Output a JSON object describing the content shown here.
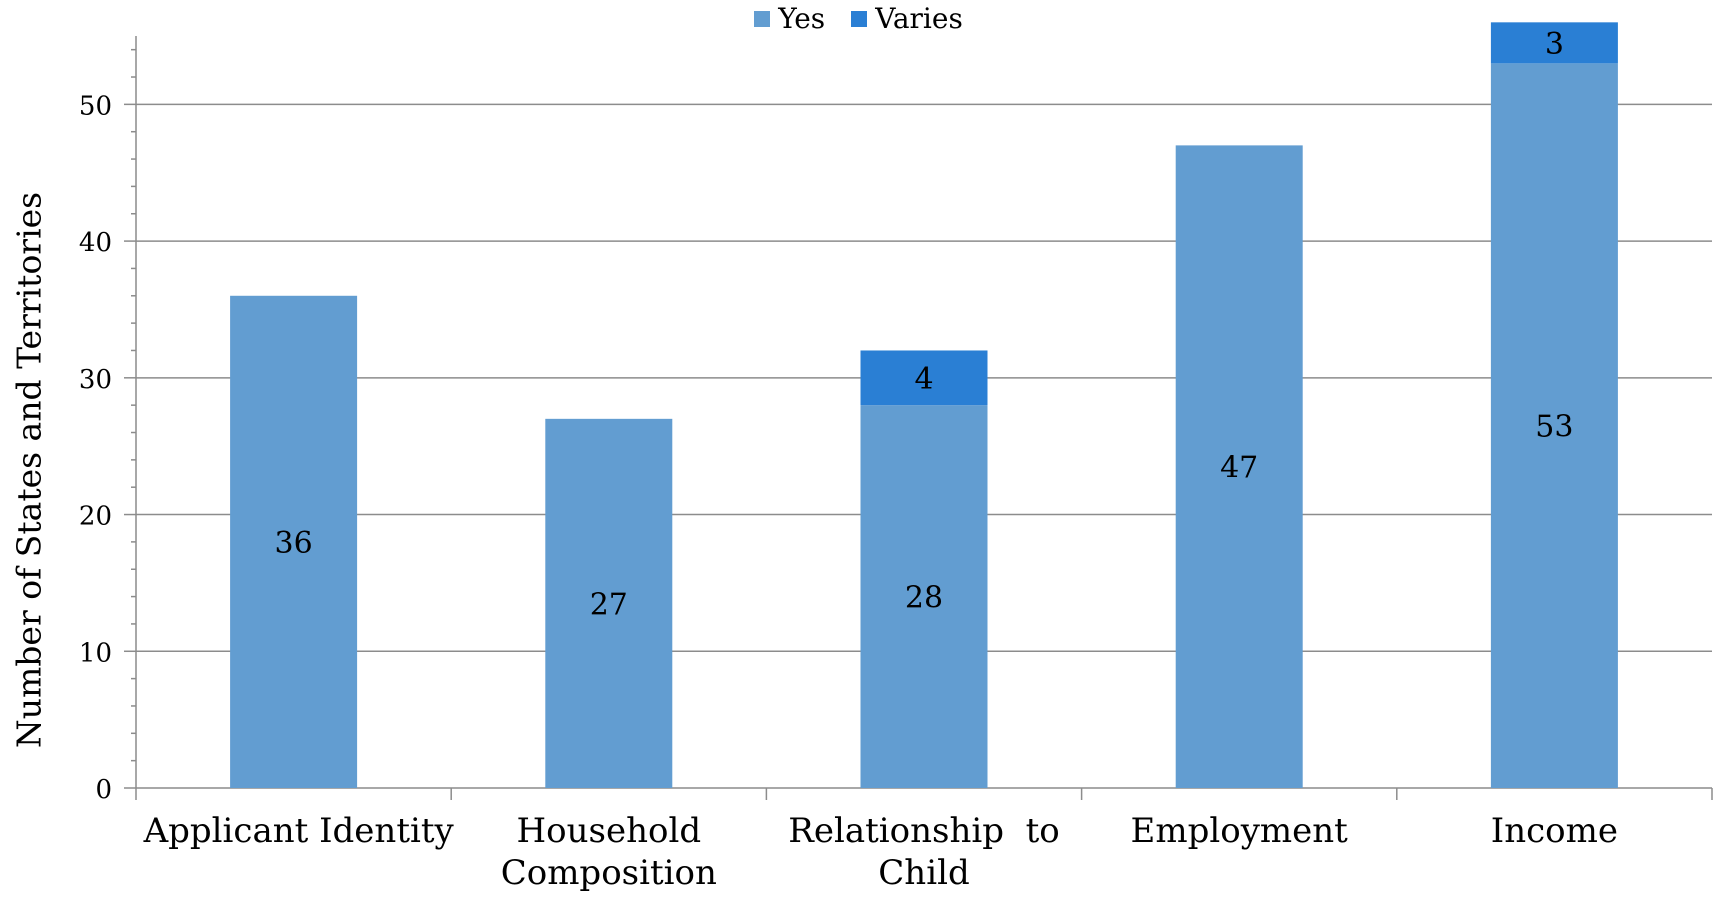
{
  "chart_data": {
    "type": "bar",
    "stacked": true,
    "categories": [
      "Applicant Identity",
      "Household\nComposition",
      "Relationship  to\nChild",
      "Employment",
      "Income"
    ],
    "series": [
      {
        "name": "Yes",
        "values": [
          36,
          27,
          28,
          47,
          53
        ],
        "color": "#629dd1",
        "labels": [
          "36",
          "27",
          "28",
          "47",
          "53"
        ]
      },
      {
        "name": "Varies",
        "values": [
          0,
          0,
          4,
          0,
          3
        ],
        "color": "#2a7fd4",
        "labels": [
          "",
          "",
          "4",
          "",
          "3"
        ]
      }
    ],
    "ylabel": "Number of States and Territories",
    "ylim": [
      0,
      55
    ],
    "yticks": [
      0,
      10,
      20,
      30,
      40,
      50
    ],
    "ytick_labels": [
      "0",
      "10",
      "20",
      "30",
      "40",
      "50"
    ],
    "grid": true,
    "legend_position": "top-center"
  }
}
